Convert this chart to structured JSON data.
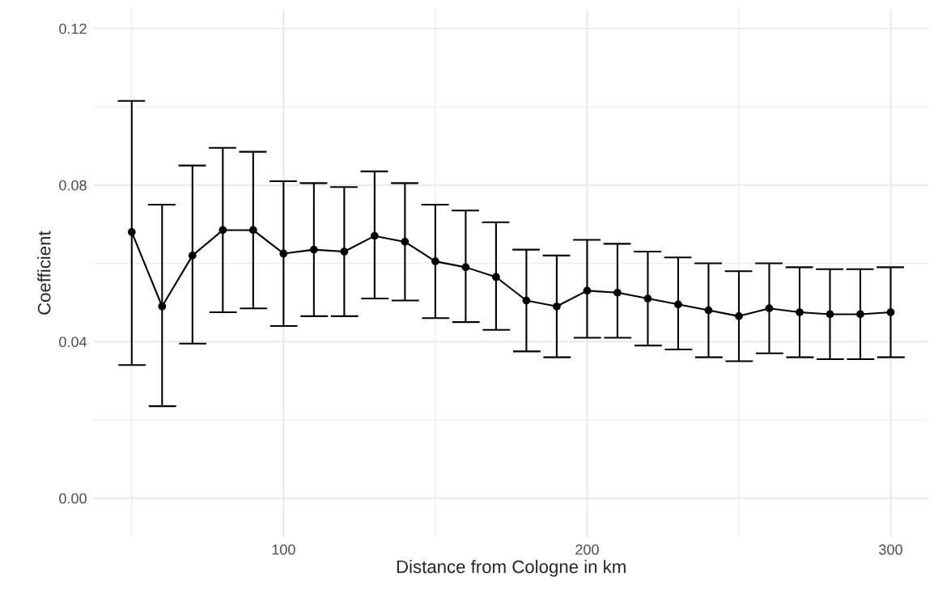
{
  "chart_data": {
    "type": "line",
    "xlabel": "Distance from Cologne in km",
    "ylabel": "Coefficient",
    "x": [
      50,
      60,
      70,
      80,
      90,
      100,
      110,
      120,
      130,
      140,
      150,
      160,
      170,
      180,
      190,
      200,
      210,
      220,
      230,
      240,
      250,
      260,
      270,
      280,
      290,
      300
    ],
    "series": [
      {
        "color": "#000000",
        "values": [
          0.068,
          0.049,
          0.062,
          0.0685,
          0.0685,
          0.0625,
          0.0635,
          0.063,
          0.067,
          0.0655,
          0.0605,
          0.059,
          0.0565,
          0.0505,
          0.049,
          0.053,
          0.0525,
          0.051,
          0.0495,
          0.048,
          0.0465,
          0.0485,
          0.0475,
          0.047,
          0.047,
          0.0475
        ],
        "errors": [
          [
            0.034,
            0.1015
          ],
          [
            0.0235,
            0.075
          ],
          [
            0.0395,
            0.085
          ],
          [
            0.0475,
            0.0895
          ],
          [
            0.0485,
            0.0885
          ],
          [
            0.044,
            0.081
          ],
          [
            0.0465,
            0.0805
          ],
          [
            0.0465,
            0.0795
          ],
          [
            0.051,
            0.0835
          ],
          [
            0.0505,
            0.0805
          ],
          [
            0.046,
            0.075
          ],
          [
            0.045,
            0.0735
          ],
          [
            0.043,
            0.0705
          ],
          [
            0.0375,
            0.0635
          ],
          [
            0.036,
            0.062
          ],
          [
            0.041,
            0.066
          ],
          [
            0.041,
            0.065
          ],
          [
            0.039,
            0.063
          ],
          [
            0.038,
            0.0615
          ],
          [
            0.036,
            0.06
          ],
          [
            0.035,
            0.058
          ],
          [
            0.037,
            0.06
          ],
          [
            0.036,
            0.059
          ],
          [
            0.0355,
            0.0585
          ],
          [
            0.0355,
            0.0585
          ],
          [
            0.036,
            0.059
          ]
        ]
      }
    ],
    "marker": "circle",
    "line_style": "solid",
    "grid": true,
    "legend": false,
    "xlim": [
      37.5,
      312.5
    ],
    "ylim": [
      -0.01,
      0.125
    ],
    "xticks": [
      {
        "value": 50,
        "label": null
      },
      100,
      {
        "value": 150,
        "label": null
      },
      200,
      {
        "value": 250,
        "label": null
      },
      300
    ],
    "yticks": [
      {
        "value": 0.0,
        "label": "0.00"
      },
      {
        "value": 0.02,
        "label": null
      },
      {
        "value": 0.04,
        "label": "0.04"
      },
      {
        "value": 0.06,
        "label": null
      },
      {
        "value": 0.08,
        "label": "0.08"
      },
      {
        "value": 0.1,
        "label": null
      },
      {
        "value": 0.12,
        "label": "0.12"
      }
    ]
  }
}
